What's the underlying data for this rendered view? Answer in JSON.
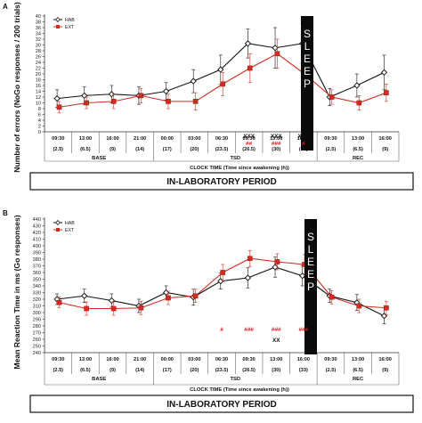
{
  "chart_data": [
    {
      "type": "line",
      "panel": "A",
      "ylabel": "Number of errors (NoGo responses / 200 trials)",
      "xlabel": "CLOCK TIME  (Time since awakening (h))",
      "period_label": "IN-LABORATORY PERIOD",
      "sleep_label": "SLEEP",
      "ylim": [
        0,
        40
      ],
      "yticks": [
        0,
        2,
        4,
        6,
        8,
        10,
        12,
        14,
        16,
        18,
        20,
        22,
        24,
        26,
        28,
        30,
        32,
        34,
        36,
        38,
        40
      ],
      "legend_placement": "top-left",
      "categories": [
        "09:30",
        "13:00",
        "16:00",
        "21:00",
        "00:00",
        "03:00",
        "06:30",
        "09:30",
        "13:00",
        "16:00",
        "09:30",
        "13:00",
        "16:00"
      ],
      "times_since_awakening": [
        "(2.5)",
        "(6.5)",
        "(9)",
        "(14)",
        "(17)",
        "(20)",
        "(23.5)",
        "(26.5)",
        "(30)",
        "(33)",
        "(2.5)",
        "(6.5)",
        "(9)"
      ],
      "groups": [
        {
          "label": "BASE",
          "span": [
            0,
            3
          ]
        },
        {
          "label": "TSD",
          "span": [
            4,
            9
          ]
        },
        {
          "label": "REC",
          "span": [
            10,
            12
          ]
        }
      ],
      "sleep_after_index": 9,
      "series": [
        {
          "name": "HAB",
          "color": "#111111",
          "marker": "diamond-open",
          "values": [
            11.5,
            12.5,
            13,
            12.5,
            14,
            17.5,
            21.5,
            30.5,
            29,
            30.5,
            12,
            16,
            20.5
          ],
          "errors": [
            3,
            3,
            3,
            3,
            3,
            4,
            5,
            5,
            7,
            7,
            3,
            4,
            6
          ]
        },
        {
          "name": "EXT",
          "color": "#d42a20",
          "marker": "square",
          "values": [
            8.5,
            10,
            10.5,
            12.5,
            10.5,
            10.5,
            16.5,
            22,
            27,
            20,
            12,
            10,
            13.5
          ],
          "errors": [
            2,
            2,
            2.5,
            2.5,
            2.5,
            3,
            4,
            5,
            5,
            6,
            2.5,
            2.5,
            3
          ]
        }
      ],
      "annotations": [
        {
          "index": 7,
          "black": "XXX",
          "red": "##"
        },
        {
          "index": 8,
          "black": "XXX",
          "red": "###"
        },
        {
          "index": 9,
          "black": "XXX",
          "red": "#"
        }
      ]
    },
    {
      "type": "line",
      "panel": "B",
      "ylabel": "Mean Reaction Time in ms (Go responses)",
      "xlabel": "CLOCK TIME  (Time since awakening (h))",
      "period_label": "IN-LABORATORY PERIOD",
      "sleep_label": "SLEEP",
      "ylim": [
        240,
        440
      ],
      "yticks": [
        240,
        250,
        260,
        270,
        280,
        290,
        300,
        310,
        320,
        330,
        340,
        350,
        360,
        370,
        380,
        390,
        400,
        410,
        420,
        430,
        440
      ],
      "legend_placement": "top-left",
      "categories": [
        "09:30",
        "13:00",
        "16:00",
        "21:00",
        "00:00",
        "03:00",
        "06:30",
        "09:30",
        "13:00",
        "16:00",
        "09:30",
        "13:00",
        "16:00"
      ],
      "times_since_awakening": [
        "(2.5)",
        "(6.5)",
        "(9)",
        "(14)",
        "(17)",
        "(20)",
        "(23.5)",
        "(26.5)",
        "(30)",
        "(33)",
        "(2.5)",
        "(6.5)",
        "(9)"
      ],
      "groups": [
        {
          "label": "BASE",
          "span": [
            0,
            3
          ]
        },
        {
          "label": "TSD",
          "span": [
            4,
            9
          ]
        },
        {
          "label": "REC",
          "span": [
            10,
            12
          ]
        }
      ],
      "sleep_after_index": 9,
      "series": [
        {
          "name": "HAB",
          "color": "#111111",
          "marker": "diamond-open",
          "values": [
            320,
            325,
            318,
            310,
            330,
            323,
            347,
            352,
            368,
            355,
            325,
            315,
            295
          ],
          "errors": [
            8,
            10,
            10,
            10,
            10,
            12,
            12,
            15,
            15,
            15,
            10,
            12,
            12
          ]
        },
        {
          "name": "EXT",
          "color": "#d42a20",
          "marker": "square",
          "values": [
            315,
            306,
            306,
            307,
            322,
            325,
            360,
            381,
            376,
            372,
            323,
            310,
            307
          ],
          "errors": [
            8,
            10,
            10,
            10,
            10,
            10,
            12,
            12,
            12,
            15,
            10,
            10,
            10
          ]
        }
      ],
      "annotations": [
        {
          "index": 6,
          "red": "#"
        },
        {
          "index": 7,
          "red": "###"
        },
        {
          "index": 8,
          "red": "###",
          "black": "XX"
        },
        {
          "index": 9,
          "red": "###"
        }
      ]
    }
  ]
}
